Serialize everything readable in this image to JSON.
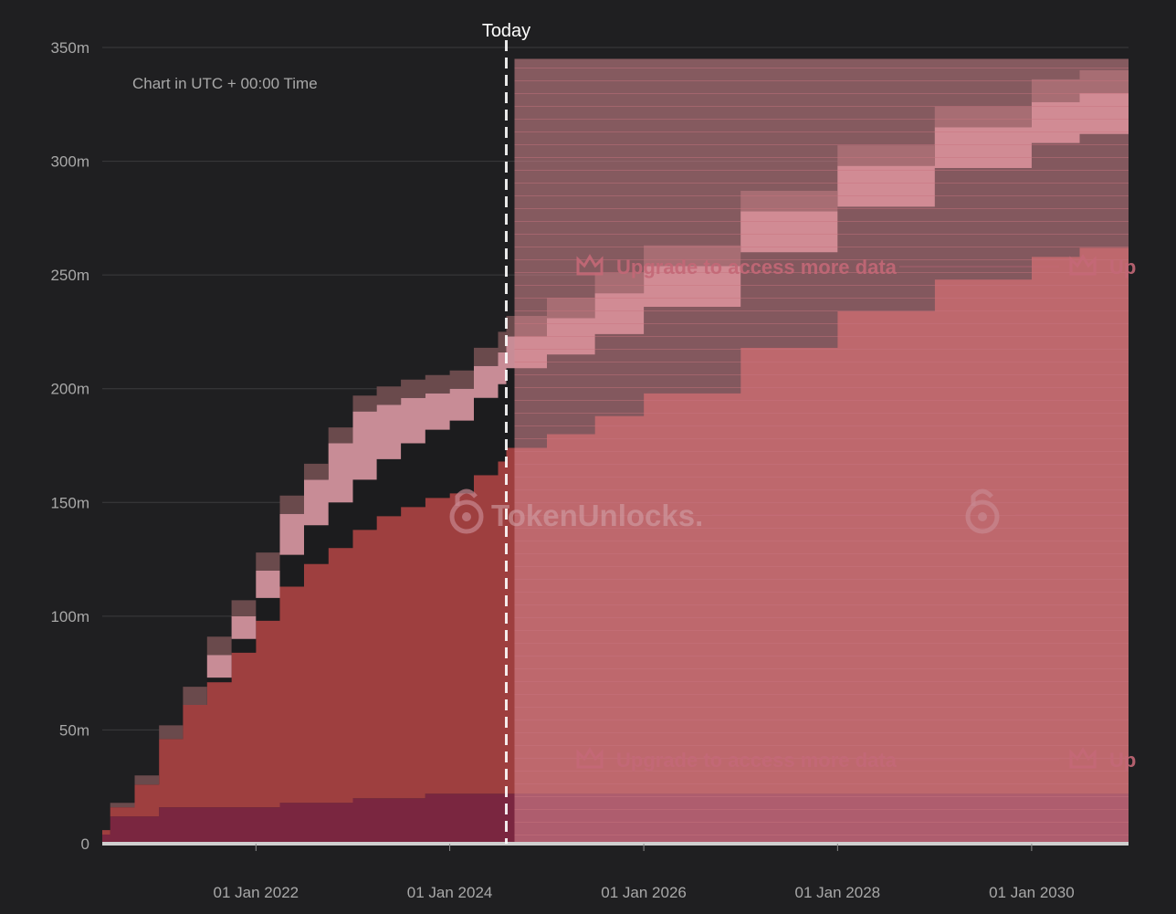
{
  "chart_data": {
    "type": "area",
    "stacked": true,
    "step": true,
    "note": "Chart in UTC + 00:00 Time",
    "today_label": "Today",
    "today_x": "2024-08-01",
    "watermark": "TokenUnlocks.",
    "upgrade_text": "Upgrade to access more data",
    "upgrade_text_partial": "Up",
    "x_range": [
      "2020-06-01",
      "2031-01-01"
    ],
    "x_ticks": [
      "01 Jan 2022",
      "01 Jan 2024",
      "01 Jan 2026",
      "01 Jan 2028",
      "01 Jan 2030"
    ],
    "y_range": [
      0,
      350
    ],
    "y_ticks": [
      "0",
      "50m",
      "100m",
      "150m",
      "200m",
      "250m",
      "300m",
      "350m"
    ],
    "grid": "horizontal",
    "colors": {
      "background": "#1f1f21",
      "grid": "#3b3b3d",
      "axis_text": "#a8a8a8",
      "base": "#7a2640",
      "main": "#9e3f3f",
      "black_band": "#1c1c1e",
      "pink_band": "#c88c96",
      "dark_band": "#6a4a4c",
      "future_overlay": "#d98a93",
      "future_overlay_grey": "#8a8a8a",
      "watermark": "#c46877"
    },
    "dates": [
      "2020-06-01",
      "2020-07-01",
      "2020-10-01",
      "2021-01-01",
      "2021-04-01",
      "2021-07-01",
      "2021-10-01",
      "2022-01-01",
      "2022-04-01",
      "2022-07-01",
      "2022-10-01",
      "2023-01-01",
      "2023-04-01",
      "2023-07-01",
      "2023-10-01",
      "2024-01-01",
      "2024-04-01",
      "2024-07-01",
      "2024-08-01",
      "2025-01-01",
      "2025-07-01",
      "2026-01-01",
      "2027-01-01",
      "2028-01-01",
      "2029-01-01",
      "2030-01-01",
      "2030-07-01",
      "2031-01-01"
    ],
    "series": [
      {
        "key": "base",
        "values": [
          4,
          12,
          12,
          16,
          16,
          16,
          16,
          16,
          18,
          18,
          18,
          20,
          20,
          20,
          22,
          22,
          22,
          22,
          22,
          22,
          22,
          22,
          22,
          22,
          22,
          22,
          22,
          22
        ]
      },
      {
        "key": "main",
        "values": [
          2,
          4,
          14,
          30,
          45,
          55,
          68,
          82,
          95,
          105,
          112,
          118,
          124,
          128,
          130,
          132,
          140,
          146,
          152,
          158,
          166,
          176,
          196,
          212,
          226,
          236,
          240,
          244
        ]
      },
      {
        "key": "black",
        "values": [
          0,
          0,
          0,
          0,
          0,
          2,
          6,
          10,
          14,
          17,
          20,
          22,
          25,
          28,
          30,
          32,
          34,
          34,
          35,
          35,
          36,
          38,
          42,
          46,
          49,
          50,
          50,
          50
        ]
      },
      {
        "key": "pink",
        "values": [
          0,
          0,
          0,
          0,
          0,
          10,
          10,
          12,
          18,
          20,
          26,
          30,
          24,
          20,
          16,
          14,
          14,
          14,
          14,
          16,
          18,
          18,
          18,
          18,
          18,
          18,
          18,
          18
        ]
      },
      {
        "key": "dark",
        "values": [
          0,
          2,
          4,
          6,
          8,
          8,
          7,
          8,
          8,
          7,
          7,
          7,
          8,
          8,
          8,
          8,
          8,
          9,
          9,
          9,
          9,
          9,
          9,
          9,
          9,
          10,
          10,
          10
        ]
      }
    ]
  }
}
